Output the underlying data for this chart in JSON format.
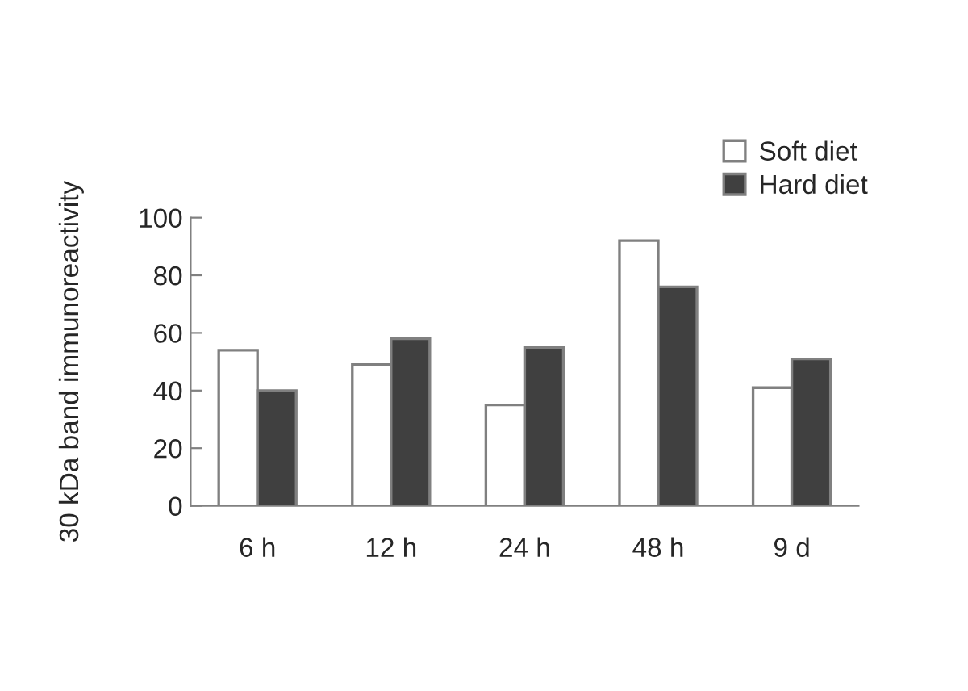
{
  "chart_data": {
    "type": "bar",
    "ylabel": "30 kDa band immunoreactivity",
    "categories": [
      "6 h",
      "12 h",
      "24 h",
      "48 h",
      "9 d"
    ],
    "series": [
      {
        "name": "Soft diet",
        "color": "#ffffff",
        "values": [
          54,
          49,
          35,
          92,
          41
        ]
      },
      {
        "name": "Hard diet",
        "color": "#404040",
        "values": [
          40,
          58,
          55,
          76,
          51
        ]
      }
    ],
    "ylim": [
      0,
      100
    ],
    "yticks": [
      0,
      20,
      40,
      60,
      80,
      100
    ],
    "grid": false,
    "legend": "top right"
  }
}
